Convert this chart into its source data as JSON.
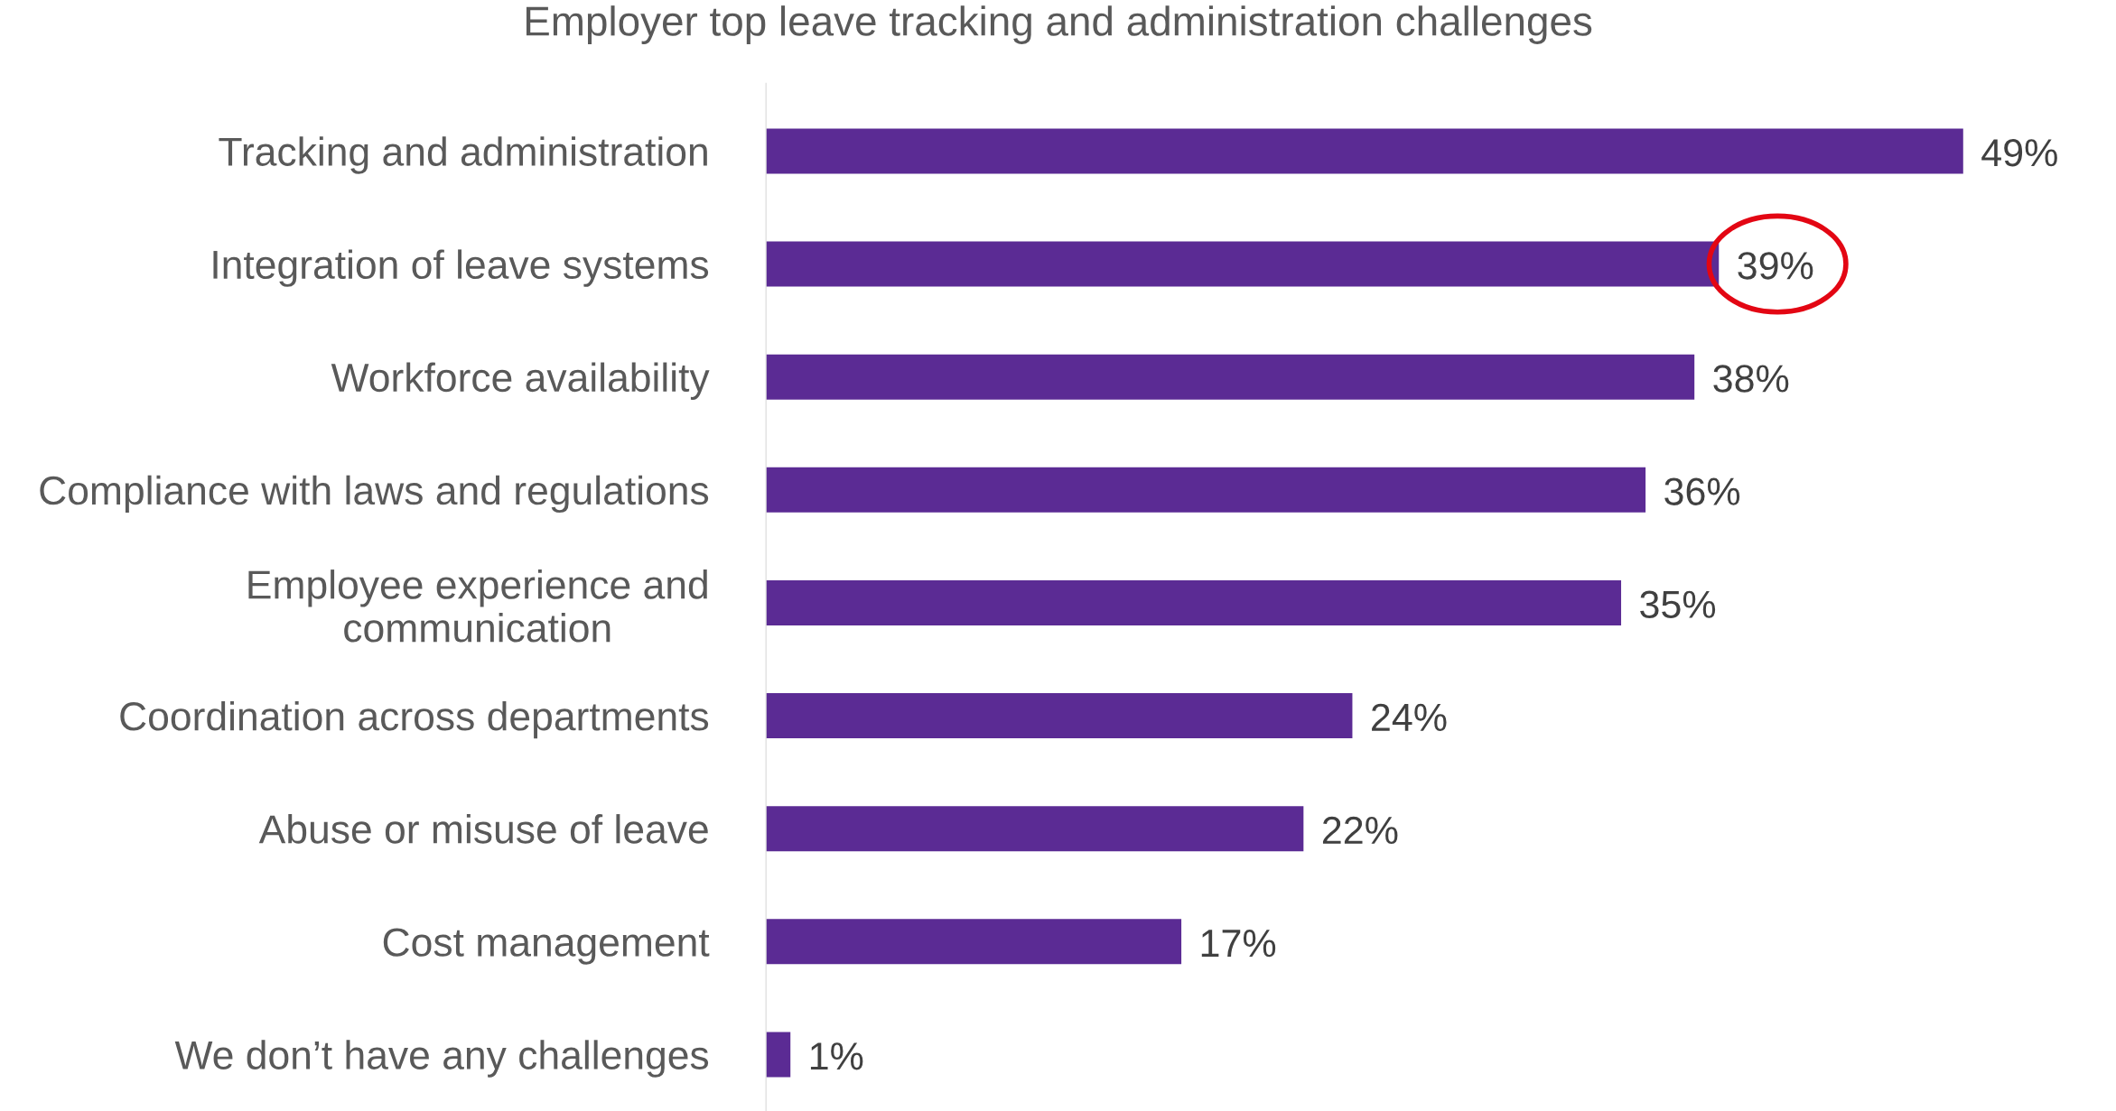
{
  "chart_data": {
    "type": "bar",
    "orientation": "horizontal",
    "title": "Employer top leave tracking and administration challenges",
    "categories": [
      "Tracking and administration",
      "Integration of leave systems",
      "Workforce availability",
      "Compliance with laws and regulations",
      "Employee experience and\ncommunication",
      "Coordination across departments",
      "Abuse or misuse of leave",
      "Cost management",
      "We don’t have any challenges"
    ],
    "values": [
      49,
      39,
      38,
      36,
      35,
      24,
      22,
      17,
      1
    ],
    "value_labels": [
      "49%",
      "39%",
      "38%",
      "36%",
      "35%",
      "24%",
      "22%",
      "17%",
      "1%"
    ],
    "color": "#5b2b94",
    "grid": false,
    "legend": false
  }
}
